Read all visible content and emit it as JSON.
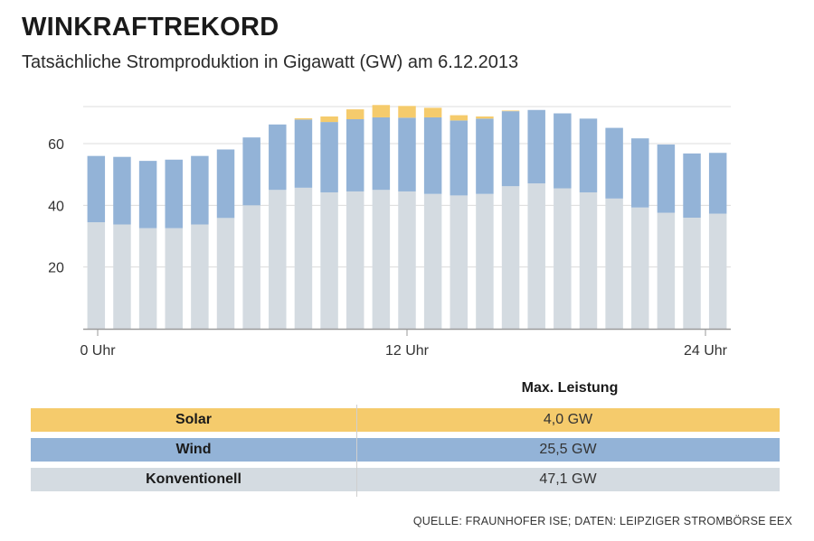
{
  "title": "WINKRAFTREKORD",
  "subtitle": "Tatsächliche Stromproduktion in Gigawatt (GW) am 6.12.2013",
  "colors": {
    "solar": "#f5cb6c",
    "wind": "#93b3d7",
    "konventionell": "#d4dbe1",
    "grid": "#dcdcdc",
    "axis": "#9a9a9a"
  },
  "chart_data": {
    "type": "bar",
    "stacked": true,
    "x": [
      0,
      1,
      2,
      3,
      4,
      5,
      6,
      7,
      8,
      9,
      10,
      11,
      12,
      13,
      14,
      15,
      16,
      17,
      18,
      19,
      20,
      21,
      22,
      23,
      24
    ],
    "x_tick_labels": [
      {
        "x": 0,
        "label": "0 Uhr"
      },
      {
        "x": 12,
        "label": "12 Uhr"
      },
      {
        "x": 24,
        "label": "24 Uhr"
      }
    ],
    "y_ticks": [
      20,
      40,
      60
    ],
    "ylim": [
      0,
      72
    ],
    "grid": true,
    "series": [
      {
        "name": "Konventionell",
        "color_key": "konventionell",
        "values": [
          34.5,
          33.8,
          32.6,
          32.6,
          33.8,
          35.9,
          40.0,
          45.0,
          45.7,
          44.2,
          44.5,
          45.0,
          44.5,
          43.7,
          43.2,
          43.7,
          46.2,
          47.1,
          45.5,
          44.2,
          42.2,
          39.3,
          37.6,
          36.0,
          37.3
        ]
      },
      {
        "name": "Wind",
        "color_key": "wind",
        "values": [
          21.5,
          21.9,
          21.8,
          22.2,
          22.2,
          22.2,
          22.0,
          21.2,
          22.1,
          22.8,
          23.4,
          23.5,
          23.9,
          24.8,
          24.3,
          24.4,
          24.3,
          23.8,
          24.3,
          23.9,
          22.9,
          22.4,
          22.1,
          20.8,
          19.7
        ]
      },
      {
        "name": "Solar",
        "color_key": "solar",
        "values": [
          0,
          0,
          0,
          0,
          0,
          0,
          0,
          0,
          0.4,
          1.8,
          3.2,
          4.0,
          3.8,
          3.1,
          1.7,
          0.7,
          0.2,
          0,
          0,
          0,
          0,
          0,
          0,
          0,
          0
        ]
      }
    ]
  },
  "legend": {
    "header": "Max. Leistung",
    "rows": [
      {
        "label": "Solar",
        "value": "4,0 GW",
        "color_key": "solar"
      },
      {
        "label": "Wind",
        "value": "25,5 GW",
        "color_key": "wind"
      },
      {
        "label": "Konventionell",
        "value": "47,1 GW",
        "color_key": "konventionell"
      }
    ]
  },
  "source": "QUELLE: FRAUNHOFER ISE; DATEN: LEIPZIGER STROMBÖRSE EEX"
}
